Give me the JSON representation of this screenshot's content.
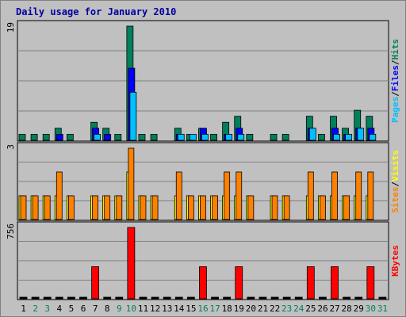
{
  "chart_data": {
    "type": "bar",
    "title": "Daily usage for January 2010",
    "x_labels": [
      "1",
      "2",
      "3",
      "4",
      "5",
      "6",
      "7",
      "8",
      "9",
      "10",
      "11",
      "12",
      "13",
      "14",
      "15",
      "16",
      "17",
      "18",
      "19",
      "20",
      "21",
      "22",
      "23",
      "24",
      "25",
      "26",
      "27",
      "28",
      "29",
      "30",
      "31"
    ],
    "weekend_days": [
      2,
      3,
      9,
      10,
      16,
      17,
      23,
      24,
      30,
      31
    ],
    "panels": [
      {
        "name": "hits-files-pages",
        "max_label": "19",
        "ymax": 19,
        "series": [
          {
            "name": "Hits",
            "color": "#00805c",
            "values": [
              1,
              1,
              1,
              2,
              1,
              0,
              3,
              2,
              1,
              19,
              1,
              1,
              0,
              2,
              1,
              2,
              1,
              3,
              4,
              1,
              0,
              1,
              1,
              0,
              4,
              1,
              4,
              2,
              5,
              4,
              0
            ]
          },
          {
            "name": "Files",
            "color": "#0000ff",
            "values": [
              0,
              0,
              0,
              1,
              0,
              0,
              2,
              1,
              0,
              12,
              0,
              0,
              0,
              1,
              0,
              2,
              0,
              1,
              2,
              0,
              0,
              0,
              0,
              0,
              2,
              0,
              2,
              1,
              2,
              2,
              0
            ]
          },
          {
            "name": "Pages",
            "color": "#00c0ff",
            "values": [
              0,
              0,
              0,
              0,
              0,
              0,
              1,
              0,
              0,
              8,
              0,
              0,
              0,
              1,
              1,
              1,
              0,
              1,
              1,
              0,
              0,
              0,
              0,
              0,
              2,
              0,
              1,
              1,
              2,
              1,
              0
            ]
          }
        ],
        "axis_label_parts": [
          {
            "text": "Pages",
            "color": "#00c0ff"
          },
          {
            "text": "/",
            "color": "#000000"
          },
          {
            "text": "Files",
            "color": "#0000ff"
          },
          {
            "text": "/",
            "color": "#000000"
          },
          {
            "text": "Hits",
            "color": "#00805c"
          }
        ]
      },
      {
        "name": "visits-sites",
        "max_label": "3",
        "ymax": 3,
        "series": [
          {
            "name": "Visits",
            "color": "#ffff00",
            "values": [
              1,
              1,
              1,
              1,
              1,
              0,
              1,
              1,
              1,
              2,
              1,
              1,
              0,
              1,
              1,
              1,
              1,
              1,
              1,
              1,
              0,
              1,
              1,
              0,
              1,
              1,
              1,
              1,
              1,
              1,
              0
            ]
          },
          {
            "name": "Sites",
            "color": "#ff8000",
            "values": [
              1,
              1,
              1,
              2,
              1,
              0,
              1,
              1,
              1,
              3,
              1,
              1,
              0,
              2,
              1,
              1,
              1,
              2,
              2,
              1,
              0,
              1,
              1,
              0,
              2,
              1,
              2,
              1,
              2,
              2,
              0
            ]
          }
        ],
        "axis_label_parts": [
          {
            "text": "Sites",
            "color": "#ff8000"
          },
          {
            "text": "/",
            "color": "#000000"
          },
          {
            "text": "Visits",
            "color": "#ffff00"
          }
        ]
      },
      {
        "name": "kbytes",
        "max_label": "756",
        "ymax": 756,
        "series": [
          {
            "name": "KBytes",
            "color": "#ff0000",
            "values": [
              0,
              0,
              0,
              0,
              0,
              0,
              340,
              0,
              0,
              756,
              0,
              0,
              0,
              0,
              0,
              340,
              0,
              0,
              340,
              0,
              0,
              0,
              0,
              0,
              340,
              0,
              340,
              0,
              0,
              340,
              0
            ]
          }
        ],
        "axis_label_parts": [
          {
            "text": "KBytes",
            "color": "#ff0000"
          }
        ]
      }
    ]
  }
}
